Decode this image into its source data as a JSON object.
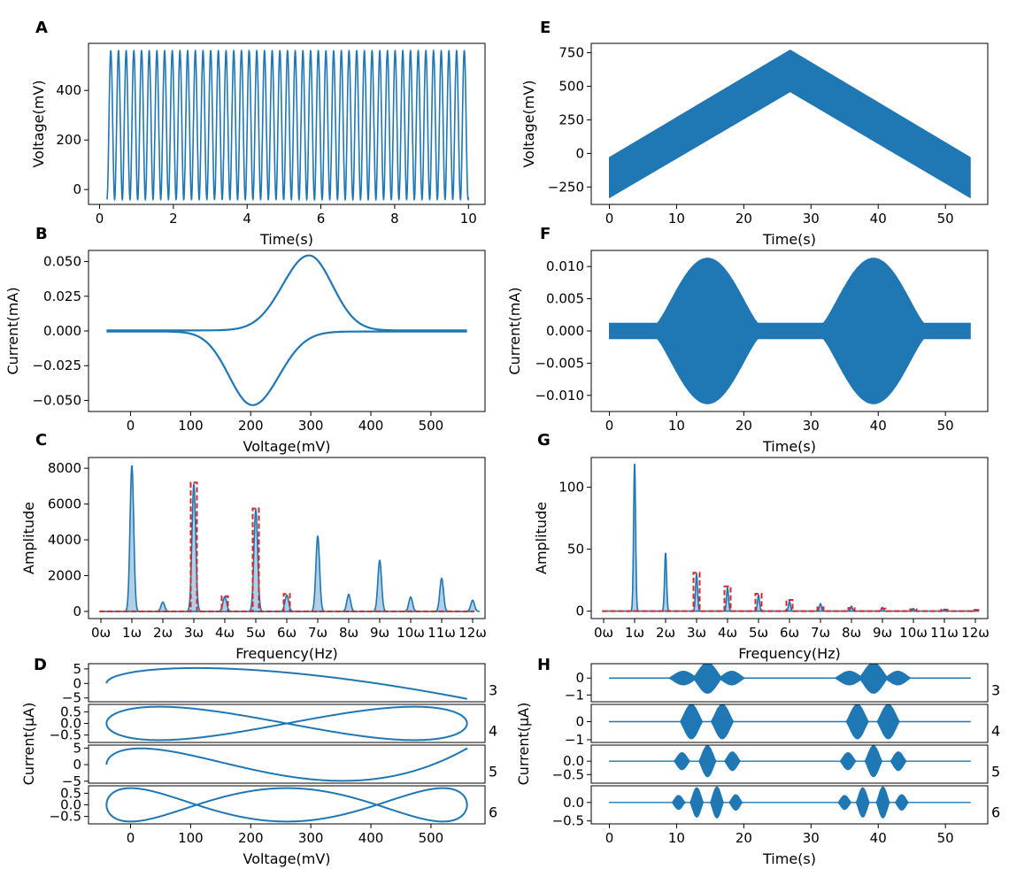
{
  "colors": {
    "blue": "#1f77b4",
    "red": "#d62728"
  },
  "chart_data": [
    {
      "panel": "A",
      "type": "line",
      "xlabel": "Time(s)",
      "ylabel": "Voltage(mV)",
      "xlim": [
        -0.3,
        10.45
      ],
      "ylim": [
        -60,
        590
      ],
      "xticks": [
        0,
        2,
        4,
        6,
        8,
        10
      ],
      "xtick_labels": [
        "0",
        "2",
        "4",
        "6",
        "8",
        "10"
      ],
      "yticks": [
        0,
        200,
        400
      ],
      "ytick_labels": [
        "0",
        "200",
        "400"
      ],
      "signal": {
        "kind": "sine",
        "t_start": 0.2,
        "t_end": 10,
        "freq_hz": 4.8,
        "min": -40,
        "max": 560
      }
    },
    {
      "panel": "B",
      "type": "line",
      "xlabel": "Voltage(mV)",
      "ylabel": "Current(mA)",
      "xlim": [
        -70,
        590
      ],
      "ylim": [
        -0.058,
        0.058
      ],
      "xticks": [
        0,
        100,
        200,
        300,
        400,
        500
      ],
      "xtick_labels": [
        "0",
        "100",
        "200",
        "300",
        "400",
        "500"
      ],
      "yticks": [
        -0.05,
        -0.025,
        0,
        0.025,
        0.05
      ],
      "ytick_labels": [
        "−0.050",
        "−0.025",
        "0.000",
        "0.025",
        "0.050"
      ],
      "signal": {
        "kind": "cv",
        "v_min": -40,
        "v_max": 560,
        "peak_ox_v": 297,
        "peak_ox_i": 0.054,
        "peak_red_v": 203,
        "peak_red_i": -0.053
      }
    },
    {
      "panel": "C",
      "type": "line",
      "xlabel": "Frequency(Hz)",
      "ylabel": "Amplitude",
      "xlim": [
        -0.4,
        12.4
      ],
      "ylim": [
        -400,
        8600
      ],
      "xticks": [
        0,
        1,
        2,
        3,
        4,
        5,
        6,
        7,
        8,
        9,
        10,
        11,
        12
      ],
      "xtick_labels": [
        "0ω",
        "1ω",
        "2ω",
        "3ω",
        "4ω",
        "5ω",
        "6ω",
        "7ω",
        "8ω",
        "9ω",
        "10ω",
        "11ω",
        "12ω"
      ],
      "yticks": [
        0,
        2000,
        4000,
        6000,
        8000
      ],
      "ytick_labels": [
        "0",
        "2000",
        "4000",
        "6000",
        "8000"
      ],
      "series": [
        {
          "peaks": [
            [
              1,
              8150
            ],
            [
              2,
              520
            ],
            [
              3,
              7100
            ],
            [
              4,
              820
            ],
            [
              5,
              5700
            ],
            [
              6,
              900
            ],
            [
              7,
              4200
            ],
            [
              8,
              950
            ],
            [
              9,
              2850
            ],
            [
              10,
              800
            ],
            [
              11,
              1850
            ],
            [
              12,
              620
            ]
          ]
        }
      ],
      "windows": [
        [
          3,
          7200
        ],
        [
          4,
          850
        ],
        [
          5,
          5750
        ],
        [
          6,
          970
        ]
      ]
    },
    {
      "panel": "D",
      "type": "line",
      "xlabel": "Voltage(mV)",
      "ylabel": "Current(μA)",
      "xlim": [
        -70,
        590
      ],
      "xticks": [
        0,
        100,
        200,
        300,
        400,
        500
      ],
      "xtick_labels": [
        "0",
        "100",
        "200",
        "300",
        "400",
        "500"
      ],
      "rows": [
        {
          "harmonic": 3,
          "label": "3",
          "ylim": [
            -6.3,
            6.8
          ],
          "yticks": [
            -5,
            0,
            5
          ],
          "ytick_labels": [
            "−5",
            "0",
            "5"
          ],
          "amp": 5.3
        },
        {
          "harmonic": 4,
          "label": "4",
          "ylim": [
            -0.82,
            0.82
          ],
          "yticks": [
            -0.5,
            0,
            0.5
          ],
          "ytick_labels": [
            "−0.5",
            "0.0",
            "0.5"
          ],
          "amp": 0.72
        },
        {
          "harmonic": 5,
          "label": "5",
          "ylim": [
            -5.6,
            5.9
          ],
          "yticks": [
            -5,
            0,
            5
          ],
          "ytick_labels": [
            "−5",
            "0",
            "5"
          ],
          "amp": 4.9
        },
        {
          "harmonic": 6,
          "label": "6",
          "ylim": [
            -0.82,
            0.82
          ],
          "yticks": [
            -0.5,
            0,
            0.5
          ],
          "ytick_labels": [
            "−0.5",
            "0.0",
            "0.5"
          ],
          "amp": 0.72
        }
      ]
    },
    {
      "panel": "E",
      "type": "area",
      "xlabel": "Time(s)",
      "ylabel": "Voltage(mV)",
      "xlim": [
        -2.7,
        56.3
      ],
      "ylim": [
        -380,
        820
      ],
      "xticks": [
        0,
        10,
        20,
        30,
        40,
        50
      ],
      "xtick_labels": [
        "0",
        "10",
        "20",
        "30",
        "40",
        "50"
      ],
      "yticks": [
        -250,
        0,
        250,
        500,
        750
      ],
      "ytick_labels": [
        "−250",
        "0",
        "250",
        "500",
        "750"
      ],
      "signal": {
        "kind": "ramp-band",
        "t_start": 0,
        "t_peak": 26.9,
        "t_end": 53.7,
        "base_low": -330,
        "base_high": -30,
        "peak_low": 460,
        "peak_high": 770
      }
    },
    {
      "panel": "F",
      "type": "area",
      "xlabel": "Time(s)",
      "ylabel": "Current(mA)",
      "xlim": [
        -2.7,
        56.3
      ],
      "ylim": [
        -0.0125,
        0.0125
      ],
      "xticks": [
        0,
        10,
        20,
        30,
        40,
        50
      ],
      "xtick_labels": [
        "0",
        "10",
        "20",
        "30",
        "40",
        "50"
      ],
      "yticks": [
        -0.01,
        -0.005,
        0,
        0.005,
        0.01
      ],
      "ytick_labels": [
        "−0.010",
        "−0.005",
        "0.000",
        "0.005",
        "0.010"
      ],
      "signal": {
        "kind": "envelope",
        "base": 0.0012,
        "peak": 0.0113,
        "centers": [
          14.6,
          39.3
        ],
        "half_width": 7.5
      }
    },
    {
      "panel": "G",
      "type": "line",
      "xlabel": "Frequency(Hz)",
      "ylabel": "Amplitude",
      "xlim": [
        -0.4,
        12.4
      ],
      "ylim": [
        -6,
        124
      ],
      "xticks": [
        0,
        1,
        2,
        3,
        4,
        5,
        6,
        7,
        8,
        9,
        10,
        11,
        12
      ],
      "xtick_labels": [
        "0ω",
        "1ω",
        "2ω",
        "3ω",
        "4ω",
        "5ω",
        "6ω",
        "7ω",
        "8ω",
        "9ω",
        "10ω",
        "11ω",
        "12ω"
      ],
      "yticks": [
        0,
        50,
        100
      ],
      "ytick_labels": [
        "0",
        "50",
        "100"
      ],
      "series": [
        {
          "peaks": [
            [
              1,
              119
            ],
            [
              2,
              47
            ],
            [
              3,
              30
            ],
            [
              4,
              19
            ],
            [
              5,
              13
            ],
            [
              6,
              8
            ],
            [
              7,
              6
            ],
            [
              8,
              4
            ],
            [
              9,
              3
            ],
            [
              10,
              2
            ],
            [
              11,
              1.5
            ],
            [
              12,
              1.2
            ]
          ]
        }
      ],
      "windows": [
        [
          3,
          31
        ],
        [
          4,
          20
        ],
        [
          5,
          14
        ],
        [
          6,
          9
        ],
        [
          7,
          3
        ],
        [
          8,
          2.5
        ],
        [
          9,
          2
        ],
        [
          10,
          1.5
        ],
        [
          11,
          1.2
        ],
        [
          12,
          1
        ]
      ]
    },
    {
      "panel": "H",
      "type": "area",
      "xlabel": "Time(s)",
      "ylabel": "Current(μA)",
      "xlim": [
        -2.7,
        56.3
      ],
      "xticks": [
        0,
        10,
        20,
        30,
        40,
        50
      ],
      "xtick_labels": [
        "0",
        "10",
        "20",
        "30",
        "40",
        "50"
      ],
      "rows": [
        {
          "harmonic": 3,
          "label": "3",
          "ylim": [
            -1.4,
            0.85
          ],
          "yticks": [
            -1,
            0
          ],
          "ytick_labels": [
            "−1",
            "0"
          ],
          "amp": 0.9
        },
        {
          "harmonic": 4,
          "label": "4",
          "ylim": [
            -1.15,
            0.95
          ],
          "yticks": [
            -1,
            0
          ],
          "ytick_labels": [
            "−1",
            "0"
          ],
          "amp": 0.95
        },
        {
          "harmonic": 5,
          "label": "5",
          "ylim": [
            -0.82,
            0.6
          ],
          "yticks": [
            -0.5,
            0
          ],
          "ytick_labels": [
            "−0.5",
            "0.0"
          ],
          "amp": 0.58
        },
        {
          "harmonic": 6,
          "label": "6",
          "ylim": [
            -0.58,
            0.45
          ],
          "yticks": [
            -0.5,
            0
          ],
          "ytick_labels": [
            "−0.5",
            "0.0"
          ],
          "amp": 0.42
        }
      ]
    }
  ]
}
